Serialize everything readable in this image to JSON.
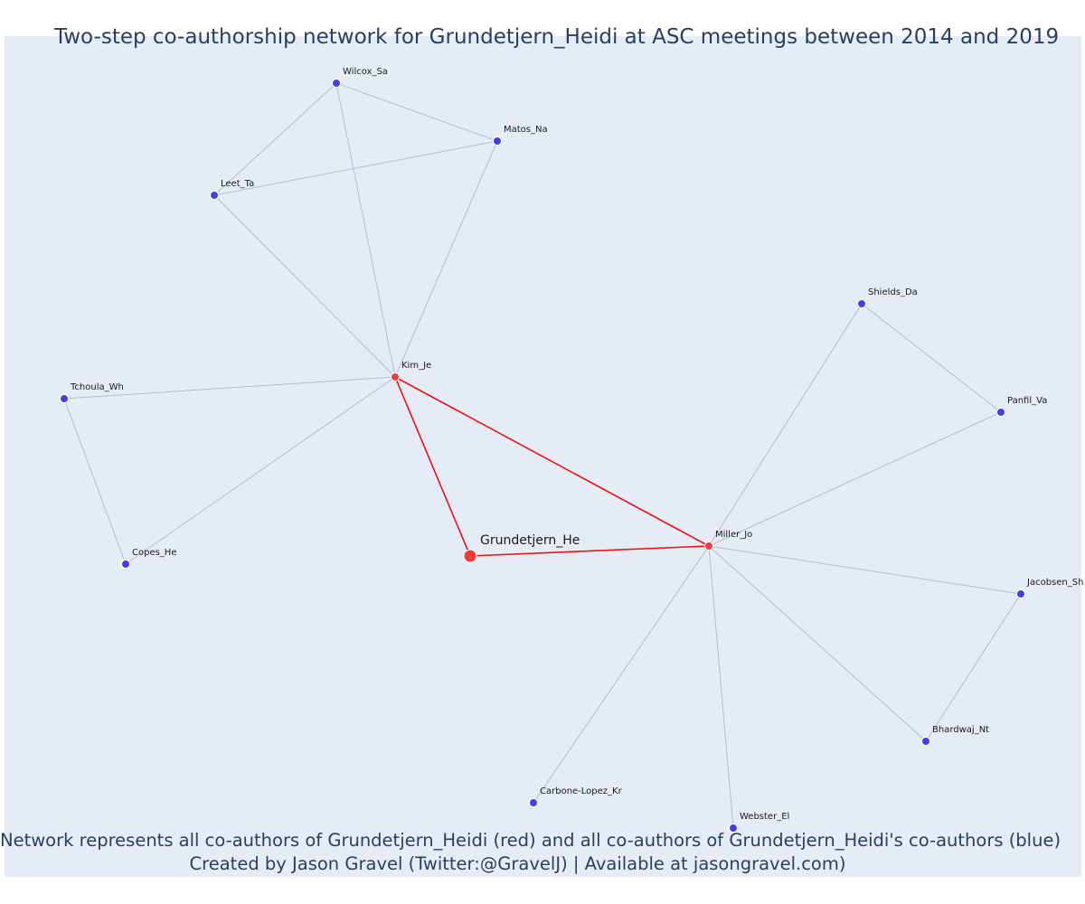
{
  "title": "Two-step co-authorship network for Grundetjern_Heidi at ASC meetings between 2014 and 2019",
  "caption_line1": "Network represents all co-authors of Grundetjern_Heidi (red) and all co-authors of Grundetjern_Heidi's co-authors (blue)",
  "caption_line2": "Created by Jason Gravel (Twitter:@GravelJ) | Available at jasongravel.com)",
  "colors": {
    "background": "#e5ecf6",
    "direct_node": "#ef3b3b",
    "indirect_node": "#4040e6",
    "direct_edge": "#ee1111",
    "indirect_edge": "#b8bccb",
    "text": "#2a3f5f"
  },
  "nodes": [
    {
      "id": "Grundetjern_He",
      "label": "Grundetjern_He",
      "group": "ego"
    },
    {
      "id": "Kim_Je",
      "label": "Kim_Je",
      "group": "coauthor"
    },
    {
      "id": "Miller_Jo",
      "label": "Miller_Jo",
      "group": "coauthor"
    },
    {
      "id": "Wilcox_Sa",
      "label": "Wilcox_Sa",
      "group": "second"
    },
    {
      "id": "Matos_Na",
      "label": "Matos_Na",
      "group": "second"
    },
    {
      "id": "Leet_Ta",
      "label": "Leet_Ta",
      "group": "second"
    },
    {
      "id": "Tchoula_Wh",
      "label": "Tchoula_Wh",
      "group": "second"
    },
    {
      "id": "Copes_He",
      "label": "Copes_He",
      "group": "second"
    },
    {
      "id": "Shields_Da",
      "label": "Shields_Da",
      "group": "second"
    },
    {
      "id": "Panfil_Va",
      "label": "Panfil_Va",
      "group": "second"
    },
    {
      "id": "Jacobsen_Sh",
      "label": "Jacobsen_Sh",
      "group": "second"
    },
    {
      "id": "Bhardwaj_Nt",
      "label": "Bhardwaj_Nt",
      "group": "second"
    },
    {
      "id": "Carbone-Lopez_Kr",
      "label": "Carbone-Lopez_Kr",
      "group": "second"
    },
    {
      "id": "Webster_El",
      "label": "Webster_El",
      "group": "second"
    }
  ],
  "edges": [
    {
      "source": "Grundetjern_He",
      "target": "Kim_Je",
      "type": "direct"
    },
    {
      "source": "Grundetjern_He",
      "target": "Miller_Jo",
      "type": "direct"
    },
    {
      "source": "Kim_Je",
      "target": "Miller_Jo",
      "type": "direct"
    },
    {
      "source": "Kim_Je",
      "target": "Wilcox_Sa",
      "type": "indirect"
    },
    {
      "source": "Kim_Je",
      "target": "Matos_Na",
      "type": "indirect"
    },
    {
      "source": "Kim_Je",
      "target": "Leet_Ta",
      "type": "indirect"
    },
    {
      "source": "Kim_Je",
      "target": "Tchoula_Wh",
      "type": "indirect"
    },
    {
      "source": "Kim_Je",
      "target": "Copes_He",
      "type": "indirect"
    },
    {
      "source": "Wilcox_Sa",
      "target": "Matos_Na",
      "type": "indirect"
    },
    {
      "source": "Wilcox_Sa",
      "target": "Leet_Ta",
      "type": "indirect"
    },
    {
      "source": "Leet_Ta",
      "target": "Matos_Na",
      "type": "indirect"
    },
    {
      "source": "Tchoula_Wh",
      "target": "Copes_He",
      "type": "indirect"
    },
    {
      "source": "Miller_Jo",
      "target": "Shields_Da",
      "type": "indirect"
    },
    {
      "source": "Miller_Jo",
      "target": "Panfil_Va",
      "type": "indirect"
    },
    {
      "source": "Miller_Jo",
      "target": "Jacobsen_Sh",
      "type": "indirect"
    },
    {
      "source": "Miller_Jo",
      "target": "Bhardwaj_Nt",
      "type": "indirect"
    },
    {
      "source": "Miller_Jo",
      "target": "Carbone-Lopez_Kr",
      "type": "indirect"
    },
    {
      "source": "Miller_Jo",
      "target": "Webster_El",
      "type": "indirect"
    },
    {
      "source": "Shields_Da",
      "target": "Panfil_Va",
      "type": "indirect"
    },
    {
      "source": "Jacobsen_Sh",
      "target": "Bhardwaj_Nt",
      "type": "indirect"
    }
  ]
}
